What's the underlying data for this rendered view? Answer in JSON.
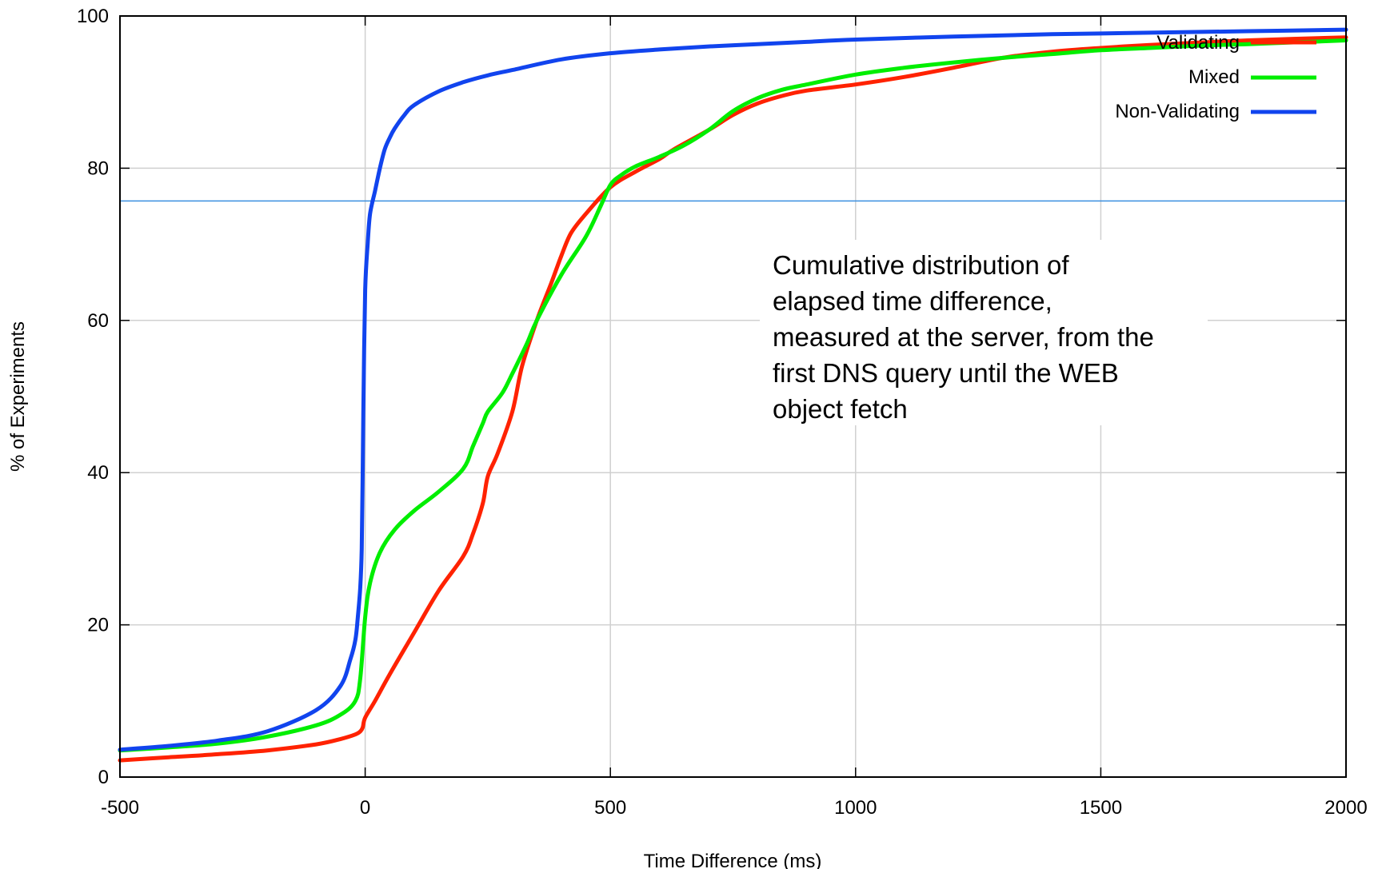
{
  "chart_data": {
    "type": "line",
    "xlabel": "Time Difference (ms)",
    "ylabel": "% of Experiments",
    "xlim": [
      -500,
      2000
    ],
    "ylim": [
      0,
      100
    ],
    "x_ticks": [
      -500,
      0,
      500,
      1000,
      1500,
      2000
    ],
    "y_ticks": [
      0,
      20,
      40,
      60,
      80,
      100
    ],
    "x_tick_labels": [
      "-500",
      "0",
      "500",
      "1000",
      "1500",
      "2000"
    ],
    "y_tick_labels": [
      "0",
      "20",
      "40",
      "60",
      "80",
      "100"
    ],
    "grid": true,
    "legend_position": "top-right",
    "reference_line": {
      "y": 75.7,
      "color": "#3a8fe0"
    },
    "annotation": [
      "Cumulative distribution of",
      "elapsed time difference,",
      "measured at the server, from the",
      "first DNS query until the WEB",
      "object fetch"
    ],
    "series": [
      {
        "name": "Validating",
        "color": "#ff2200",
        "x": [
          -500,
          -400,
          -300,
          -200,
          -100,
          -50,
          -20,
          -10,
          -5,
          0,
          20,
          50,
          100,
          150,
          200,
          220,
          240,
          250,
          270,
          300,
          320,
          350,
          380,
          400,
          420,
          450,
          500,
          550,
          600,
          630,
          700,
          750,
          800,
          850,
          900,
          1000,
          1100,
          1200,
          1300,
          1400,
          1500,
          1600,
          1700,
          1800,
          2000
        ],
        "y": [
          2.2,
          2.6,
          3.0,
          3.5,
          4.3,
          5.0,
          5.6,
          6.0,
          6.5,
          7.8,
          10.0,
          13.5,
          19.0,
          24.5,
          29.0,
          32.0,
          36.0,
          39.5,
          42.5,
          48.0,
          54.0,
          60.0,
          65.0,
          68.5,
          71.5,
          74.0,
          77.5,
          79.5,
          81.2,
          82.5,
          85.0,
          87.0,
          88.5,
          89.5,
          90.2,
          91.0,
          92.0,
          93.2,
          94.5,
          95.3,
          95.8,
          96.2,
          96.5,
          96.8,
          97.2
        ]
      },
      {
        "name": "Mixed",
        "color": "#00ee00",
        "x": [
          -500,
          -400,
          -300,
          -200,
          -100,
          -50,
          -20,
          -10,
          0,
          10,
          30,
          60,
          100,
          150,
          200,
          220,
          240,
          250,
          280,
          300,
          330,
          350,
          400,
          450,
          480,
          500,
          520,
          550,
          600,
          650,
          700,
          750,
          800,
          850,
          900,
          1000,
          1100,
          1200,
          1300,
          1400,
          1500,
          1600,
          1700,
          1800,
          2000
        ],
        "y": [
          3.5,
          3.9,
          4.4,
          5.3,
          6.8,
          8.2,
          10.0,
          13.0,
          21.0,
          25.5,
          29.5,
          32.5,
          35.0,
          37.5,
          40.5,
          43.5,
          46.5,
          48.0,
          50.5,
          53.0,
          57.0,
          60.0,
          66.0,
          71.0,
          75.0,
          77.8,
          79.0,
          80.2,
          81.5,
          83.0,
          85.0,
          87.5,
          89.2,
          90.3,
          91.0,
          92.3,
          93.2,
          93.9,
          94.5,
          95.0,
          95.5,
          95.8,
          96.1,
          96.3,
          96.8
        ]
      },
      {
        "name": "Non-Validating",
        "color": "#1144ee",
        "x": [
          -500,
          -400,
          -300,
          -200,
          -100,
          -50,
          -30,
          -20,
          -15,
          -10,
          -7,
          -5,
          -3,
          0,
          5,
          10,
          20,
          30,
          40,
          50,
          60,
          80,
          100,
          150,
          200,
          250,
          300,
          400,
          500,
          600,
          700,
          800,
          900,
          1000,
          1200,
          1400,
          1600,
          1800,
          2000
        ],
        "y": [
          3.6,
          4.1,
          4.8,
          6.0,
          8.8,
          12.0,
          15.5,
          18.0,
          21.0,
          25.0,
          30.0,
          40.0,
          52.0,
          64.0,
          70.0,
          74.0,
          77.0,
          80.0,
          82.5,
          84.0,
          85.2,
          87.0,
          88.3,
          90.1,
          91.3,
          92.2,
          92.9,
          94.3,
          95.1,
          95.6,
          96.0,
          96.3,
          96.6,
          96.9,
          97.3,
          97.6,
          97.8,
          98.0,
          98.2
        ]
      }
    ]
  }
}
